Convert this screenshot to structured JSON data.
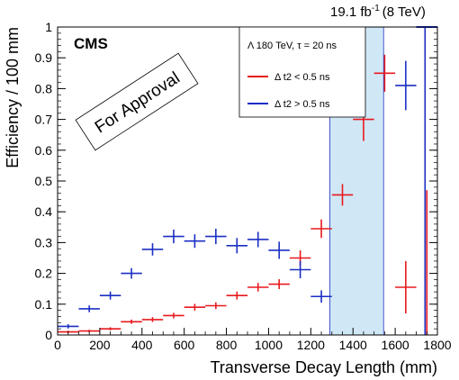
{
  "chart_data": {
    "type": "scatter",
    "title": "",
    "lumi_label": "19.1 fb",
    "lumi_sup": "-1",
    "lumi_energy": "(8 TeV)",
    "experiment_label": "CMS",
    "stamp_label": "For Approval",
    "xlabel": "Transverse Decay Length (mm)",
    "ylabel": "Efficiency / 100 mm",
    "xlim": [
      0,
      1800
    ],
    "ylim": [
      0,
      1
    ],
    "xticks": [
      0,
      200,
      400,
      600,
      800,
      1000,
      1200,
      1400,
      1600,
      1800
    ],
    "yticks": [
      0,
      0.1,
      0.2,
      0.3,
      0.4,
      0.5,
      0.6,
      0.7,
      0.8,
      0.9,
      1
    ],
    "ytick_labels": [
      "0",
      "0.1",
      "0.2",
      "0.3",
      "0.4",
      "0.5",
      "0.6",
      "0.7",
      "0.8",
      "0.9",
      "1"
    ],
    "legend": {
      "header": "Λ 180 TeV, τ = 20 ns",
      "position": "top-right"
    },
    "band": {
      "x_from": 1290,
      "x_to": 1545,
      "color": "#a9d6ef"
    },
    "series": [
      {
        "name": "Δ t2 < 0.5 ns",
        "color": "#e8191e",
        "x": [
          50,
          150,
          250,
          350,
          450,
          550,
          650,
          750,
          850,
          950,
          1050,
          1150,
          1250,
          1350,
          1450,
          1550,
          1650
        ],
        "y": [
          0.01,
          0.013,
          0.02,
          0.043,
          0.05,
          0.063,
          0.09,
          0.095,
          0.128,
          0.155,
          0.165,
          0.25,
          0.345,
          0.455,
          0.7,
          0.85,
          0.155
        ],
        "yerr": [
          0.004,
          0.004,
          0.005,
          0.007,
          0.008,
          0.009,
          0.011,
          0.011,
          0.013,
          0.014,
          0.016,
          0.025,
          0.03,
          0.035,
          0.07,
          0.06,
          0.085
        ]
      },
      {
        "name": "Δ t2 > 0.5 ns",
        "color": "#1b2fc4",
        "x": [
          50,
          150,
          250,
          350,
          450,
          550,
          650,
          750,
          850,
          950,
          1050,
          1150,
          1250,
          1650
        ],
        "y": [
          0.028,
          0.085,
          0.128,
          0.2,
          0.278,
          0.32,
          0.305,
          0.32,
          0.29,
          0.31,
          0.275,
          0.212,
          0.125,
          0.81
        ],
        "yerr": [
          0.007,
          0.011,
          0.013,
          0.017,
          0.02,
          0.022,
          0.022,
          0.025,
          0.025,
          0.025,
          0.028,
          0.028,
          0.02,
          0.08
        ]
      }
    ],
    "edge_bar": {
      "x": 1750,
      "red_y": 0.47,
      "blue_y": 1.0,
      "red_yerr": 0.47,
      "blue_yerr": 0.5
    }
  }
}
